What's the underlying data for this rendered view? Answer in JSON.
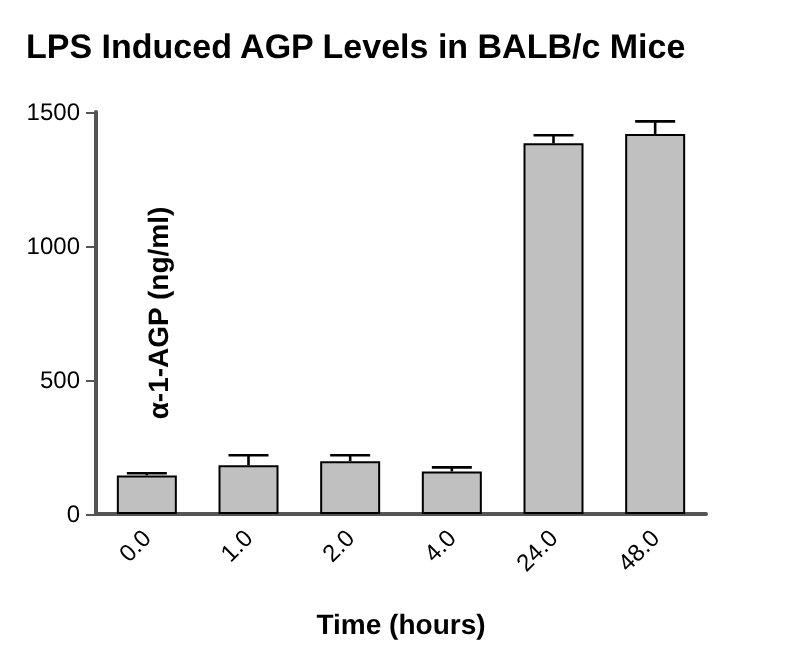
{
  "chart_data": {
    "type": "bar",
    "title": "LPS Induced AGP Levels in BALB/c Mice",
    "xlabel": "Time (hours)",
    "ylabel": "α-1-AGP (ng/ml)",
    "categories": [
      "0.0",
      "1.0",
      "2.0",
      "4.0",
      "24.0",
      "48.0"
    ],
    "values": [
      144,
      182,
      197,
      159,
      1383,
      1418
    ],
    "errors": [
      [
        144,
        152
      ],
      [
        182,
        219
      ],
      [
        197,
        219
      ],
      [
        159,
        174
      ],
      [
        1383,
        1413
      ],
      [
        1418,
        1465
      ]
    ],
    "color": "#c0c0c0",
    "ylim": [
      0,
      1500
    ],
    "yticks": [
      0,
      500,
      1000,
      1500
    ],
    "grid": false
  }
}
